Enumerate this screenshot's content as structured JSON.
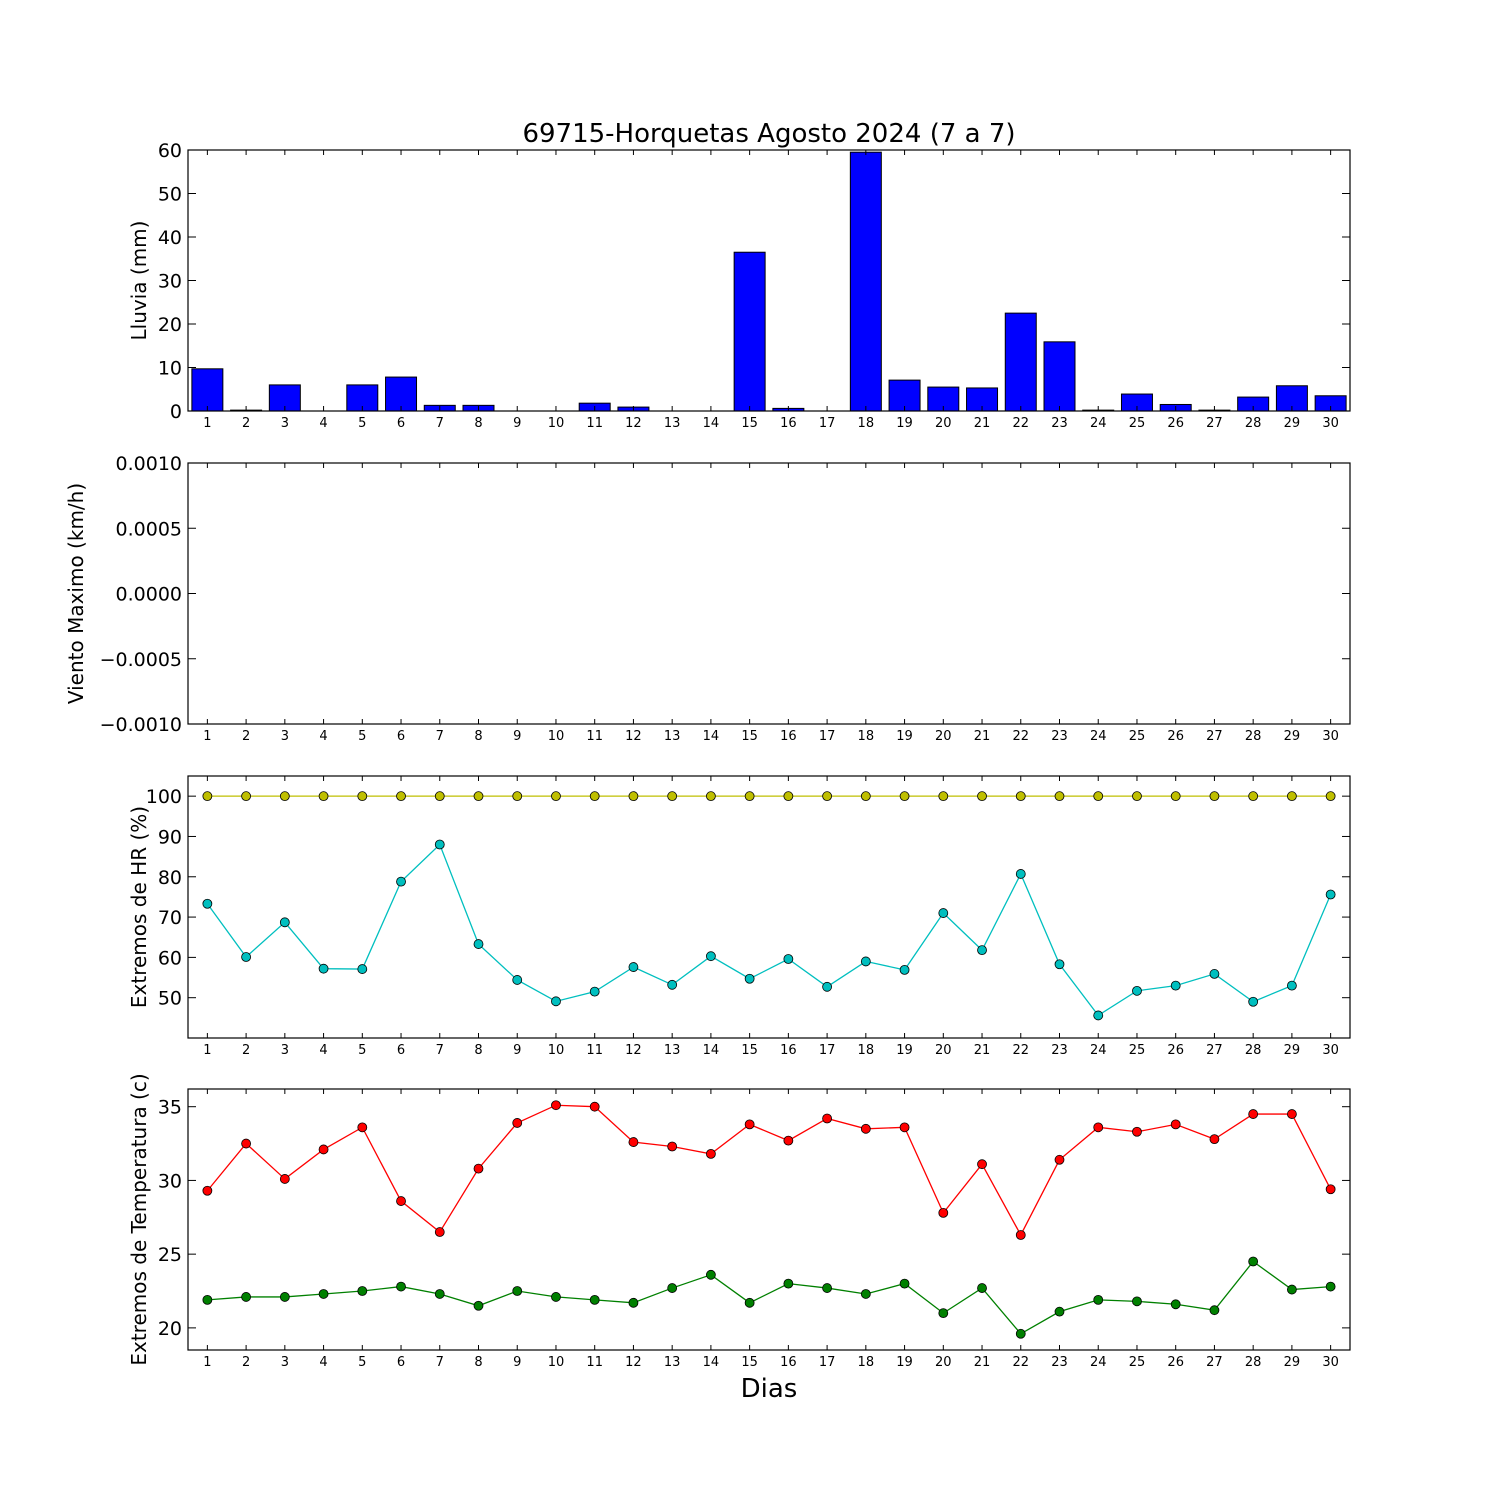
{
  "chart_data": {
    "title": "69715-Horquetas Agosto 2024  (7 a 7)",
    "xlabel": "Dias",
    "days": [
      1,
      2,
      3,
      4,
      5,
      6,
      7,
      8,
      9,
      10,
      11,
      12,
      13,
      14,
      15,
      16,
      17,
      18,
      19,
      20,
      21,
      22,
      23,
      24,
      25,
      26,
      27,
      28,
      29,
      30
    ],
    "panels": [
      {
        "type": "bar",
        "ylabel": "Lluvia (mm)",
        "ylim": [
          0,
          60
        ],
        "yticks": [
          0,
          10,
          20,
          30,
          40,
          50,
          60
        ],
        "ytick_labels": [
          "0",
          "10",
          "20",
          "30",
          "40",
          "50",
          "60"
        ],
        "series": [
          {
            "color": "#0000ff",
            "values": [
              9.7,
              0.2,
              6.0,
              0,
              6.0,
              7.8,
              1.3,
              1.3,
              0,
              0,
              1.8,
              0.9,
              0,
              0,
              36.5,
              0.6,
              0,
              59.5,
              7.1,
              5.5,
              5.3,
              22.5,
              15.9,
              0.2,
              3.9,
              1.5,
              0.2,
              3.2,
              5.8,
              3.5
            ]
          }
        ]
      },
      {
        "type": "line",
        "ylabel": "Viento Maximo (km/h)",
        "ylim": [
          -0.001,
          0.001
        ],
        "yticks": [
          -0.001,
          -0.0005,
          0,
          0.0005,
          0.001
        ],
        "ytick_labels": [
          "−0.0010",
          "−0.0005",
          "0.0000",
          "0.0005",
          "0.0010"
        ],
        "series": []
      },
      {
        "type": "line",
        "ylabel": "Extremos de HR (%)",
        "ylim": [
          40,
          105
        ],
        "yticks": [
          50,
          60,
          70,
          80,
          90,
          100
        ],
        "ytick_labels": [
          "50",
          "60",
          "70",
          "80",
          "90",
          "100"
        ],
        "series": [
          {
            "color": "#bfbf00",
            "values": [
              100,
              100,
              100,
              100,
              100,
              100,
              100,
              100,
              100,
              100,
              100,
              100,
              100,
              100,
              100,
              100,
              100,
              100,
              100,
              100,
              100,
              100,
              100,
              100,
              100,
              100,
              100,
              100,
              100,
              100
            ]
          },
          {
            "color": "#00bfbf",
            "values": [
              73.3,
              60.1,
              68.7,
              57.2,
              57.1,
              78.8,
              88.0,
              63.3,
              54.4,
              49.1,
              51.5,
              57.6,
              53.2,
              60.3,
              54.7,
              59.6,
              52.7,
              59.0,
              56.9,
              71.0,
              61.8,
              80.7,
              58.3,
              45.6,
              51.7,
              53.0,
              55.9,
              49.0,
              53.0,
              75.6
            ]
          }
        ]
      },
      {
        "type": "line",
        "ylabel": "Extremos de Temperatura (c)",
        "ylim": [
          18.5,
          36.2
        ],
        "yticks": [
          20,
          25,
          30,
          35
        ],
        "ytick_labels": [
          "20",
          "25",
          "30",
          "35"
        ],
        "series": [
          {
            "color": "#ff0000",
            "values": [
              29.3,
              32.5,
              30.1,
              32.1,
              33.6,
              28.6,
              26.5,
              30.8,
              33.9,
              35.1,
              35.0,
              32.6,
              32.3,
              31.8,
              33.8,
              32.7,
              34.2,
              33.5,
              33.6,
              27.8,
              31.1,
              26.3,
              31.4,
              33.6,
              33.3,
              33.8,
              32.8,
              34.5,
              34.5,
              29.4
            ]
          },
          {
            "color": "#008000",
            "values": [
              21.9,
              22.1,
              22.1,
              22.3,
              22.5,
              22.8,
              22.3,
              21.5,
              22.5,
              22.1,
              21.9,
              21.7,
              22.7,
              23.6,
              21.7,
              23.0,
              22.7,
              22.3,
              23.0,
              21.0,
              22.7,
              19.6,
              21.1,
              21.9,
              21.8,
              21.6,
              21.2,
              24.5,
              22.6,
              22.8
            ]
          }
        ]
      }
    ]
  }
}
